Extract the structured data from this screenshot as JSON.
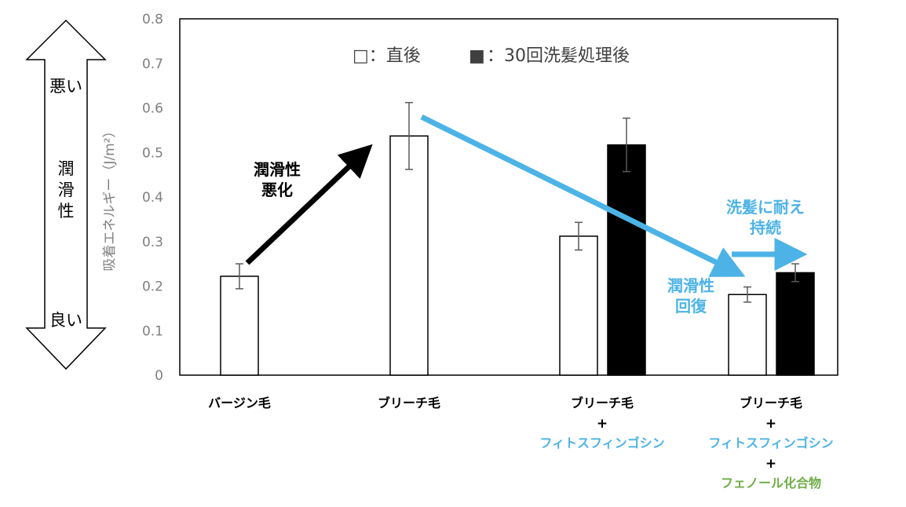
{
  "colors": {
    "accent_blue": "#4db3e6",
    "accent_green": "#70ad47",
    "bar_fill_immediate": "#ffffff",
    "bar_fill_after30": "#000000",
    "axis_gray": "#7f7f7f"
  },
  "side_scale": {
    "top_label": "悪い",
    "middle_label": "潤滑性",
    "bottom_label": "良い"
  },
  "annotations": {
    "worsen": "潤滑性\n悪化",
    "recover": "潤滑性\n回復",
    "persist": "洗髪に耐え\n持続"
  },
  "plus_sign": "+",
  "chart_data": {
    "type": "bar",
    "ylabel": "吸着エネルギー（J/m²）",
    "ylim": [
      0,
      0.8
    ],
    "ytick_step": 0.1,
    "yticks": [
      "0",
      "0.1",
      "0.2",
      "0.3",
      "0.4",
      "0.5",
      "0.6",
      "0.7",
      "0.8"
    ],
    "legend": {
      "immediate": "□：直後",
      "after30_symbol": "■",
      "after30": "：30回洗髪処理後"
    },
    "categories": [
      {
        "lines": [
          "バージン毛"
        ],
        "line_colors": [
          "#000000"
        ]
      },
      {
        "lines": [
          "ブリーチ毛"
        ],
        "line_colors": [
          "#000000"
        ]
      },
      {
        "lines": [
          "ブリーチ毛",
          "+",
          "フィトスフィンゴシン"
        ],
        "line_colors": [
          "#000000",
          "#000000",
          "#4db3e6"
        ]
      },
      {
        "lines": [
          "ブリーチ毛",
          "+",
          "フィトスフィンゴシン",
          "+",
          "フェノール化合物"
        ],
        "line_colors": [
          "#000000",
          "#000000",
          "#4db3e6",
          "#000000",
          "#70ad47"
        ]
      }
    ],
    "series": [
      {
        "name": "直後",
        "values": [
          0.222,
          0.537,
          0.312,
          0.181
        ],
        "errors": [
          0.028,
          0.075,
          0.031,
          0.017
        ]
      },
      {
        "name": "30回洗髪処理後",
        "values": [
          null,
          null,
          0.517,
          0.23
        ],
        "errors": [
          null,
          null,
          0.06,
          0.02
        ]
      }
    ]
  }
}
